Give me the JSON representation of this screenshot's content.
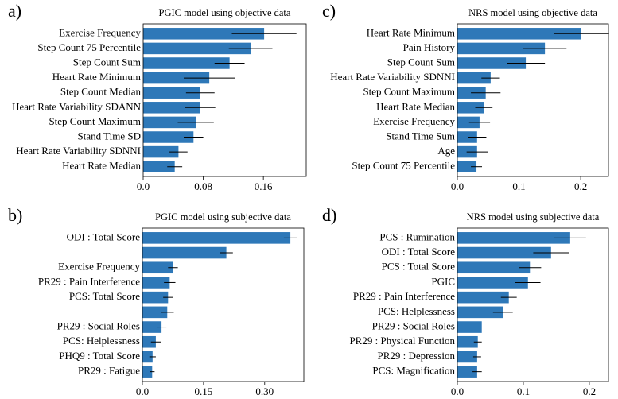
{
  "chart_data": [
    {
      "type": "barh",
      "panel_label": "a)",
      "title": "PGIC model using objective data",
      "categories": [
        "Exercise Frequency",
        "Step Count 75 Percentile",
        "Step Count Sum",
        "Heart Rate Minimum",
        "Step Count Median",
        "Heart Rate Variability SDANN",
        "Step Count Maximum",
        "Stand Time SD",
        "Heart Rate Variability SDNNI",
        "Heart Rate Median"
      ],
      "values": [
        0.161,
        0.143,
        0.115,
        0.088,
        0.076,
        0.076,
        0.07,
        0.067,
        0.047,
        0.042
      ],
      "errors": [
        0.043,
        0.029,
        0.02,
        0.034,
        0.019,
        0.02,
        0.024,
        0.013,
        0.012,
        0.01
      ],
      "xlim": [
        0,
        0.217
      ],
      "xticks": [
        {
          "value": 0,
          "label": "0.0"
        },
        0.08,
        0.16
      ],
      "color": "#2e78b8"
    },
    {
      "type": "barh",
      "panel_label": "b)",
      "title": "PGIC model using subjective data",
      "categories": [
        "ODI : Total Score",
        null,
        "Exercise Frequency",
        "PR29 : Pain Interference",
        "PCS: Total Score",
        null,
        "PR29 : Social Roles",
        "PCS: Helplessness",
        "PHQ9 : Total Score",
        "PR29 : Fatigue"
      ],
      "values": [
        0.363,
        0.206,
        0.075,
        0.067,
        0.063,
        0.061,
        0.047,
        0.033,
        0.025,
        0.024
      ],
      "errors": [
        0.016,
        0.016,
        0.012,
        0.014,
        0.012,
        0.016,
        0.012,
        0.012,
        0.008,
        0.006
      ],
      "xlim": [
        0,
        0.396
      ],
      "xticks": [
        {
          "value": 0,
          "label": "0.0"
        },
        0.15,
        {
          "value": 0.3,
          "label": "0.30"
        }
      ],
      "color": "#2e78b8"
    },
    {
      "type": "barh",
      "panel_label": "c)",
      "title": "NRS model using objective data",
      "categories": [
        "Heart Rate Minimum",
        "Pain History",
        "Step Count Sum",
        "Heart Rate Variability SDNNI",
        "Step Count Maximum",
        "Heart Rate Median",
        "Exercise Frequency",
        "Stand Time Sum",
        "Age",
        "Step Count 75 Percentile"
      ],
      "values": [
        0.201,
        0.142,
        0.111,
        0.054,
        0.046,
        0.043,
        0.036,
        0.032,
        0.032,
        0.031
      ],
      "errors": [
        0.045,
        0.035,
        0.031,
        0.015,
        0.024,
        0.014,
        0.017,
        0.015,
        0.017,
        0.009
      ],
      "xlim": [
        0,
        0.245
      ],
      "xticks": [
        {
          "value": 0,
          "label": "0.0"
        },
        0.1,
        0.2
      ],
      "color": "#2e78b8"
    },
    {
      "type": "barh",
      "panel_label": "d)",
      "title": "NRS model using subjective data",
      "categories": [
        "PCS : Rumination",
        "ODI : Total Score",
        "PCS : Total Score",
        "PGIC",
        "PR29 : Pain Interference",
        "PCS: Helplessness",
        "PR29 : Social Roles",
        "PR29 : Physical Function",
        "PR29 : Depression",
        "PCS: Magnification"
      ],
      "values": [
        0.171,
        0.142,
        0.11,
        0.107,
        0.078,
        0.069,
        0.037,
        0.031,
        0.03,
        0.03
      ],
      "errors": [
        0.024,
        0.027,
        0.017,
        0.019,
        0.012,
        0.015,
        0.01,
        0.006,
        0.006,
        0.007
      ],
      "xlim": [
        0,
        0.229
      ],
      "xticks": [
        {
          "value": 0,
          "label": "0.0"
        },
        0.1,
        0.2
      ],
      "color": "#2e78b8"
    }
  ]
}
